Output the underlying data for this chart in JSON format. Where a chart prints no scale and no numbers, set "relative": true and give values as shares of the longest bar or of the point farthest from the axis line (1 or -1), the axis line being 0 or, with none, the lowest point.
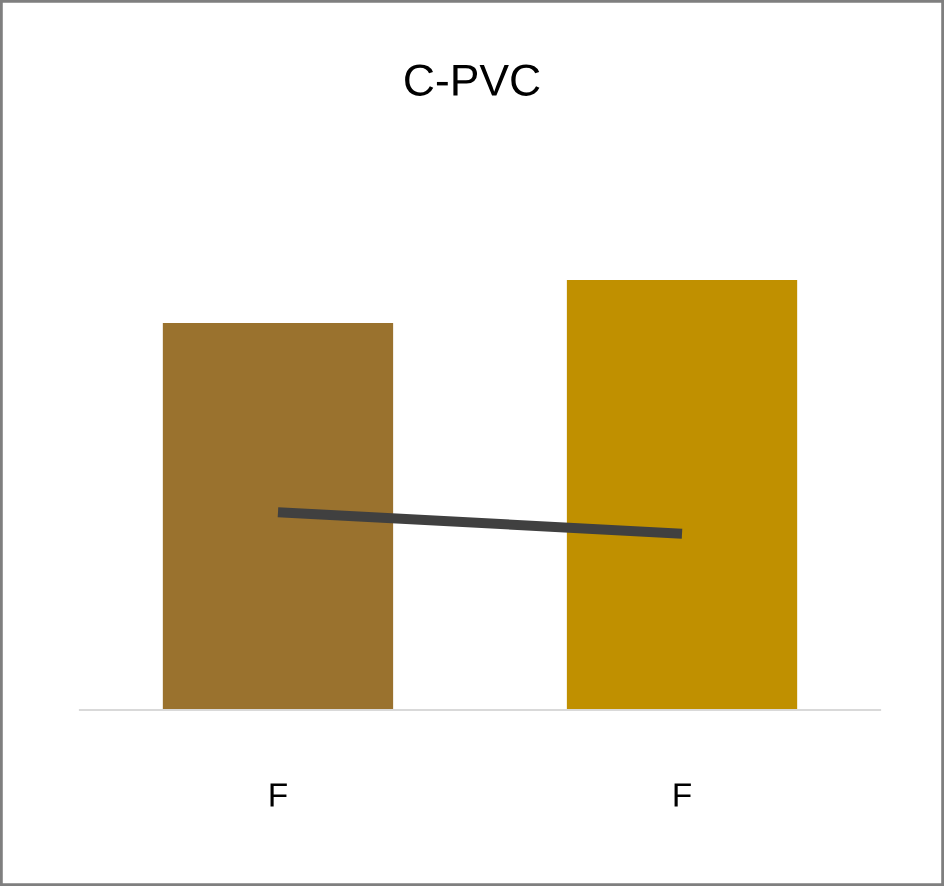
{
  "chart_data": {
    "type": "bar",
    "title": "C-PVC",
    "relative": true,
    "categories": [
      "F",
      "F"
    ],
    "series": [
      {
        "colors": [
          "#9a722e",
          "#c09000"
        ],
        "values": [
          0.9,
          1.0
        ]
      },
      {
        "type": "line",
        "color": "#404040",
        "values": [
          0.46,
          0.41
        ],
        "marker": "none"
      }
    ],
    "grid": false,
    "legend": false
  }
}
